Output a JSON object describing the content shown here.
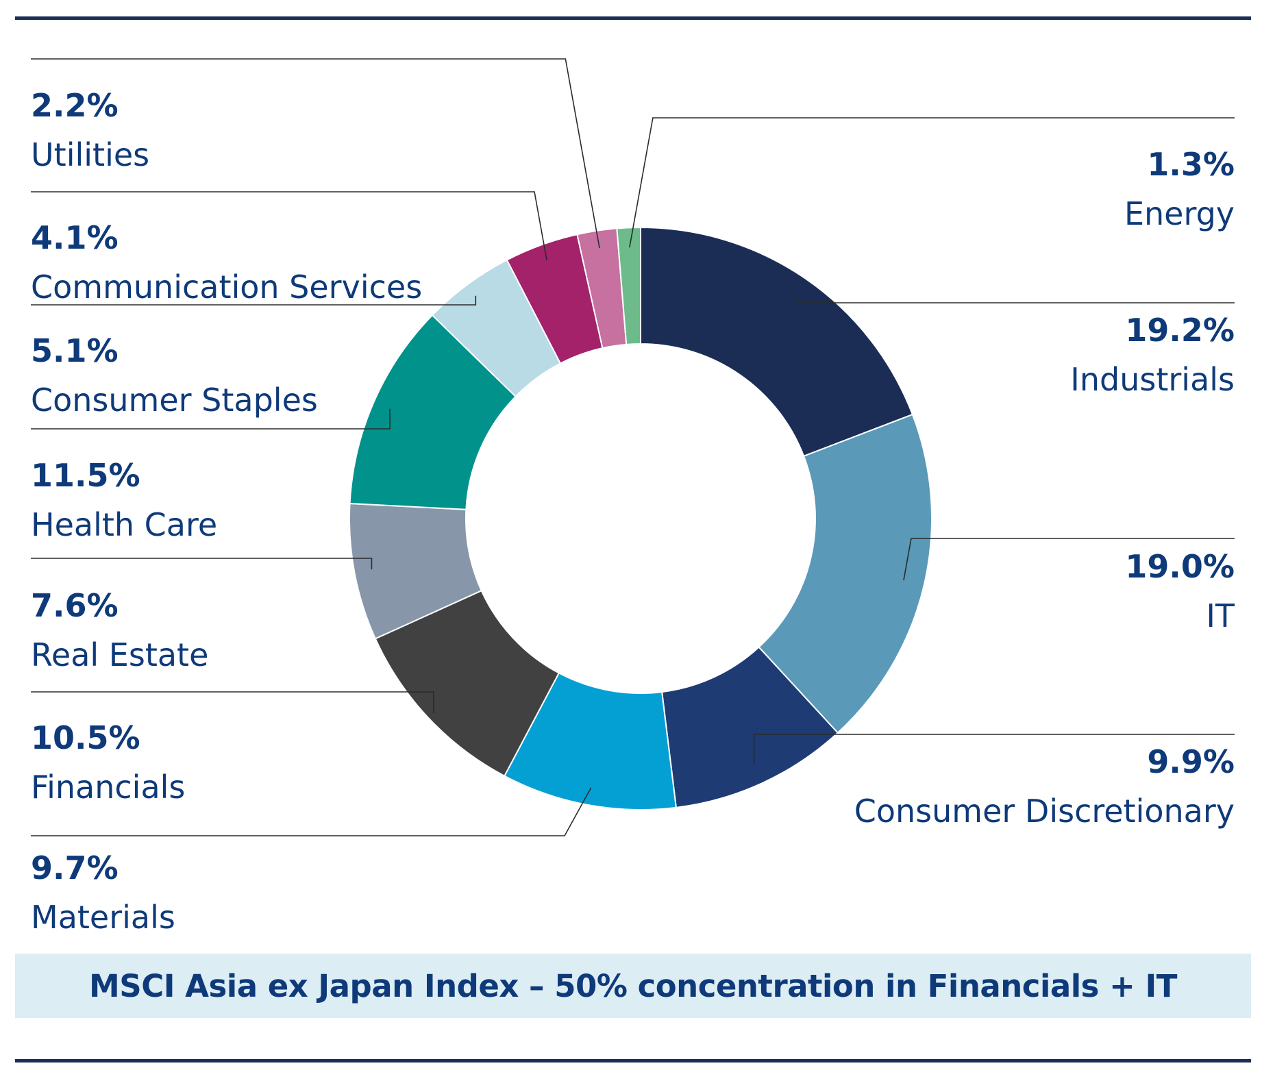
{
  "chart_data": {
    "type": "pie",
    "variant": "donut",
    "title": "",
    "caption": "MSCI Asia ex Japan Index – 50% concentration in Financials + IT",
    "unit": "%",
    "slices": [
      {
        "name": "Industrials",
        "value": 19.2,
        "label": "19.2%",
        "color": "#1b2d55",
        "side": "right"
      },
      {
        "name": "IT",
        "value": 19.0,
        "label": "19.0%",
        "color": "#5b99b9",
        "side": "right"
      },
      {
        "name": "Consumer Discretionary",
        "value": 9.9,
        "label": "9.9%",
        "color": "#1f3b73",
        "side": "right"
      },
      {
        "name": "Materials",
        "value": 9.7,
        "label": "9.7%",
        "color": "#05a0d3",
        "side": "left"
      },
      {
        "name": "Financials",
        "value": 10.5,
        "label": "10.5%",
        "color": "#414141",
        "side": "left"
      },
      {
        "name": "Real Estate",
        "value": 7.6,
        "label": "7.6%",
        "color": "#8796a9",
        "side": "left"
      },
      {
        "name": "Health Care",
        "value": 11.5,
        "label": "11.5%",
        "color": "#00928b",
        "side": "left"
      },
      {
        "name": "Consumer Staples",
        "value": 5.1,
        "label": "5.1%",
        "color": "#b8dbe6",
        "side": "left"
      },
      {
        "name": "Communication Services",
        "value": 4.1,
        "label": "4.1%",
        "color": "#a3226a",
        "side": "left"
      },
      {
        "name": "Utilities",
        "value": 2.2,
        "label": "2.2%",
        "color": "#c671a0",
        "side": "left"
      },
      {
        "name": "Energy",
        "value": 1.3,
        "label": "1.3%",
        "color": "#6dbb8a",
        "side": "right"
      }
    ]
  }
}
